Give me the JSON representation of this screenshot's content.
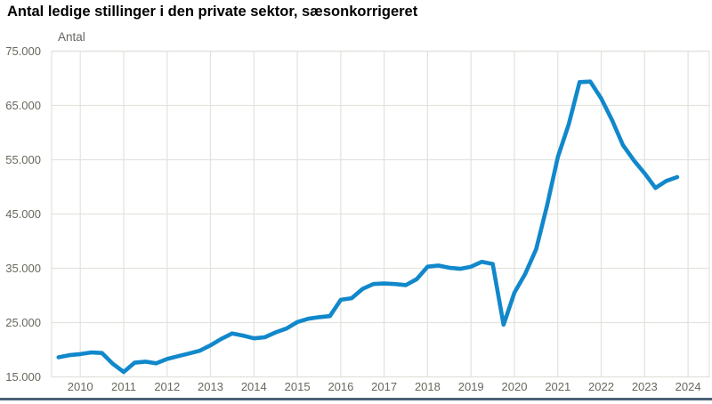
{
  "header": {
    "title": "Antal ledige stillinger i den private sektor, sæsonkorrigeret"
  },
  "chart_data": {
    "type": "line",
    "title": "Antal ledige stillinger i den private sektor, sæsonkorrigeret",
    "ylabel": "Antal",
    "unit_label": "Antal",
    "xlabel": "",
    "legend_position": "none",
    "grid": true,
    "frequency": "quarterly",
    "x_start": 2010.0,
    "x_step": 0.25,
    "x_domain": [
      2009.84,
      2024.99
    ],
    "y_domain": [
      15000,
      75000
    ],
    "values": [
      18600,
      19000,
      19200,
      19500,
      19400,
      17400,
      15900,
      17600,
      17800,
      17500,
      18300,
      18800,
      19300,
      19800,
      20800,
      22000,
      23000,
      22600,
      22100,
      22300,
      23200,
      23900,
      25100,
      25700,
      26000,
      26200,
      29200,
      29500,
      31200,
      32100,
      32200,
      32100,
      31900,
      33000,
      35300,
      35500,
      35100,
      34900,
      35300,
      36200,
      35800,
      24600,
      30500,
      34000,
      38500,
      46500,
      55500,
      61500,
      69300,
      69400,
      66300,
      62300,
      57700,
      54900,
      52500,
      49800,
      51100,
      51800
    ],
    "x_ticks": [
      {
        "value": 2010.5,
        "label": "2010"
      },
      {
        "value": 2011.5,
        "label": "2011"
      },
      {
        "value": 2012.5,
        "label": "2012"
      },
      {
        "value": 2013.5,
        "label": "2013"
      },
      {
        "value": 2014.5,
        "label": "2014"
      },
      {
        "value": 2015.5,
        "label": "2015"
      },
      {
        "value": 2016.5,
        "label": "2016"
      },
      {
        "value": 2017.5,
        "label": "2017"
      },
      {
        "value": 2018.5,
        "label": "2018"
      },
      {
        "value": 2019.5,
        "label": "2019"
      },
      {
        "value": 2020.5,
        "label": "2020"
      },
      {
        "value": 2021.5,
        "label": "2021"
      },
      {
        "value": 2022.5,
        "label": "2022"
      },
      {
        "value": 2023.5,
        "label": "2023"
      },
      {
        "value": 2024.5,
        "label": "2024"
      }
    ],
    "y_ticks": [
      {
        "value": 75000,
        "label": "75.000"
      },
      {
        "value": 65000,
        "label": "65.000"
      },
      {
        "value": 55000,
        "label": "55.000"
      },
      {
        "value": 45000,
        "label": "45.000"
      },
      {
        "value": 35000,
        "label": "35.000"
      },
      {
        "value": 25000,
        "label": "25.000"
      },
      {
        "value": 15000,
        "label": "15.000"
      }
    ],
    "line_color": "#1188cb",
    "grid_color": "#e2e2de",
    "tick_color": "#68685e"
  },
  "footer": {
    "rule_color": "#4a6277"
  }
}
